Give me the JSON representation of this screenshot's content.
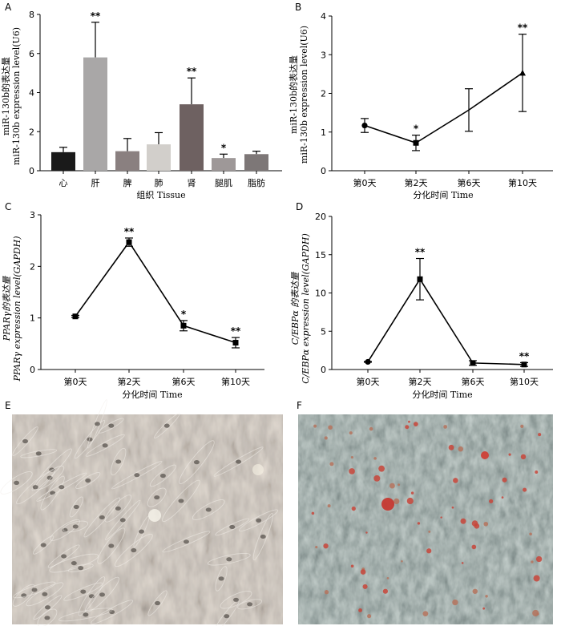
{
  "chart_data": [
    {
      "panel": "A",
      "type": "bar",
      "categories": [
        "心",
        "肝",
        "脾",
        "肺",
        "肾",
        "腿肌",
        "脂肪"
      ],
      "values": [
        0.95,
        5.8,
        1.0,
        1.35,
        3.4,
        0.65,
        0.85
      ],
      "errors": [
        0.25,
        1.8,
        0.65,
        0.6,
        1.35,
        0.2,
        0.15
      ],
      "bar_colors": [
        "#1a1a1a",
        "#a9a7a7",
        "#8a8080",
        "#d2cfcb",
        "#6e6161",
        "#9e9898",
        "#7d7777"
      ],
      "significance": [
        "",
        "**",
        "",
        "",
        "**",
        "*",
        ""
      ],
      "ylabel_cn": "miR-130b的表达量",
      "ylabel_en": "miR-130b expression level(U6)",
      "xlabel": "组织 Tissue",
      "ylim": [
        0,
        8
      ],
      "yticks": [
        0,
        2,
        4,
        6,
        8
      ]
    },
    {
      "panel": "B",
      "type": "line",
      "categories": [
        "第0天",
        "第2天",
        "第6天",
        "第10天"
      ],
      "values": [
        1.17,
        0.72,
        1.57,
        2.53
      ],
      "errors": [
        0.18,
        0.2,
        0.55,
        1.0
      ],
      "markers": [
        "circle",
        "square",
        "none",
        "triangle"
      ],
      "significance": [
        "",
        "*",
        "",
        "**"
      ],
      "ylabel_cn": "miR-130b的表达量",
      "ylabel_en": "miR-130b expression level(U6)",
      "xlabel": "分化时间 Time",
      "ylim": [
        0,
        4
      ],
      "yticks": [
        0,
        1,
        2,
        3,
        4
      ]
    },
    {
      "panel": "C",
      "type": "line",
      "categories": [
        "第0天",
        "第2天",
        "第6天",
        "第10天"
      ],
      "values": [
        1.03,
        2.47,
        0.85,
        0.52
      ],
      "errors": [
        0.02,
        0.08,
        0.1,
        0.1
      ],
      "markers": [
        "square",
        "square",
        "square",
        "square"
      ],
      "significance": [
        "",
        "**",
        "*",
        "**"
      ],
      "ylabel_cn": "PPARγ的表达量",
      "ylabel_en": "PPARγ expression level(GAPDH)",
      "xlabel": "分化时间 Time",
      "ylim": [
        0,
        3
      ],
      "yticks": [
        0,
        1,
        2,
        3
      ]
    },
    {
      "panel": "D",
      "type": "line",
      "categories": [
        "第0天",
        "第2天",
        "第6天",
        "第10天"
      ],
      "values": [
        1.0,
        11.8,
        0.85,
        0.65
      ],
      "errors": [
        0.05,
        2.7,
        0.3,
        0.25
      ],
      "markers": [
        "circle",
        "square",
        "square",
        "square"
      ],
      "significance": [
        "",
        "**",
        "",
        "**"
      ],
      "ylabel_cn": "C/EBPα 的表达量",
      "ylabel_en": "C/EBPα  expression level(GAPDH)",
      "xlabel": "分化时间 Time",
      "ylim": [
        0,
        20
      ],
      "yticks": [
        0,
        5,
        10,
        15,
        20
      ]
    }
  ],
  "photos": [
    {
      "panel": "E",
      "tint": "#8d8782"
    },
    {
      "panel": "F",
      "tint": "#5d6a66"
    }
  ]
}
